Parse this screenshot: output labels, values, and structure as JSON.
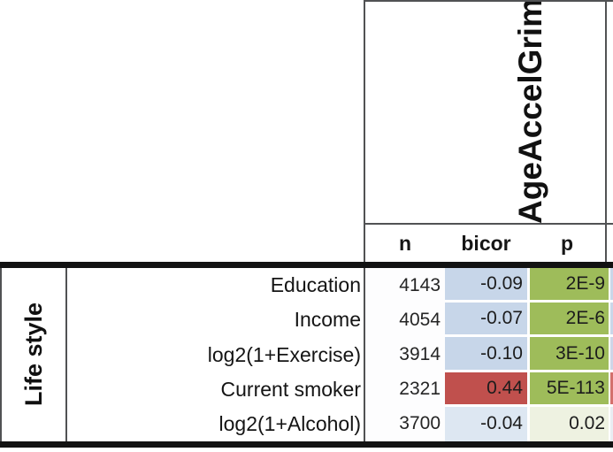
{
  "table": {
    "clock_header": "AgeAccelGrim",
    "group_label": "Life style",
    "columns": [
      "n",
      "bicor",
      "p"
    ],
    "rows": [
      {
        "label": "Education",
        "n": "4143",
        "bicor": "-0.09",
        "p": "2E-9"
      },
      {
        "label": "Income",
        "n": "4054",
        "bicor": "-0.07",
        "p": "2E-6"
      },
      {
        "label": "log2(1+Exercise)",
        "n": "3914",
        "bicor": "-0.10",
        "p": "3E-10"
      },
      {
        "label": "Current smoker",
        "n": "2321",
        "bicor": "0.44",
        "p": "5E-113"
      },
      {
        "label": "log2(1+Alcohol)",
        "n": "3700",
        "bicor": "-0.04",
        "p": "0.02"
      }
    ],
    "colors": {
      "bicor_bg": [
        "#c7d6e9",
        "#c7d6e9",
        "#c7d6e9",
        "#c0504d",
        "#dde7f2"
      ],
      "p_bg": [
        "#9ebc5a",
        "#9ebc5a",
        "#9ebc5a",
        "#9ebc5a",
        "#eef2e1"
      ],
      "next_col_bg": [
        "#c9d7e9",
        "#c9d7e9",
        "#ced6e8",
        "#d4706c",
        "#e9edf2"
      ],
      "border_dark": "#515254",
      "divider_black": "#121212"
    }
  }
}
